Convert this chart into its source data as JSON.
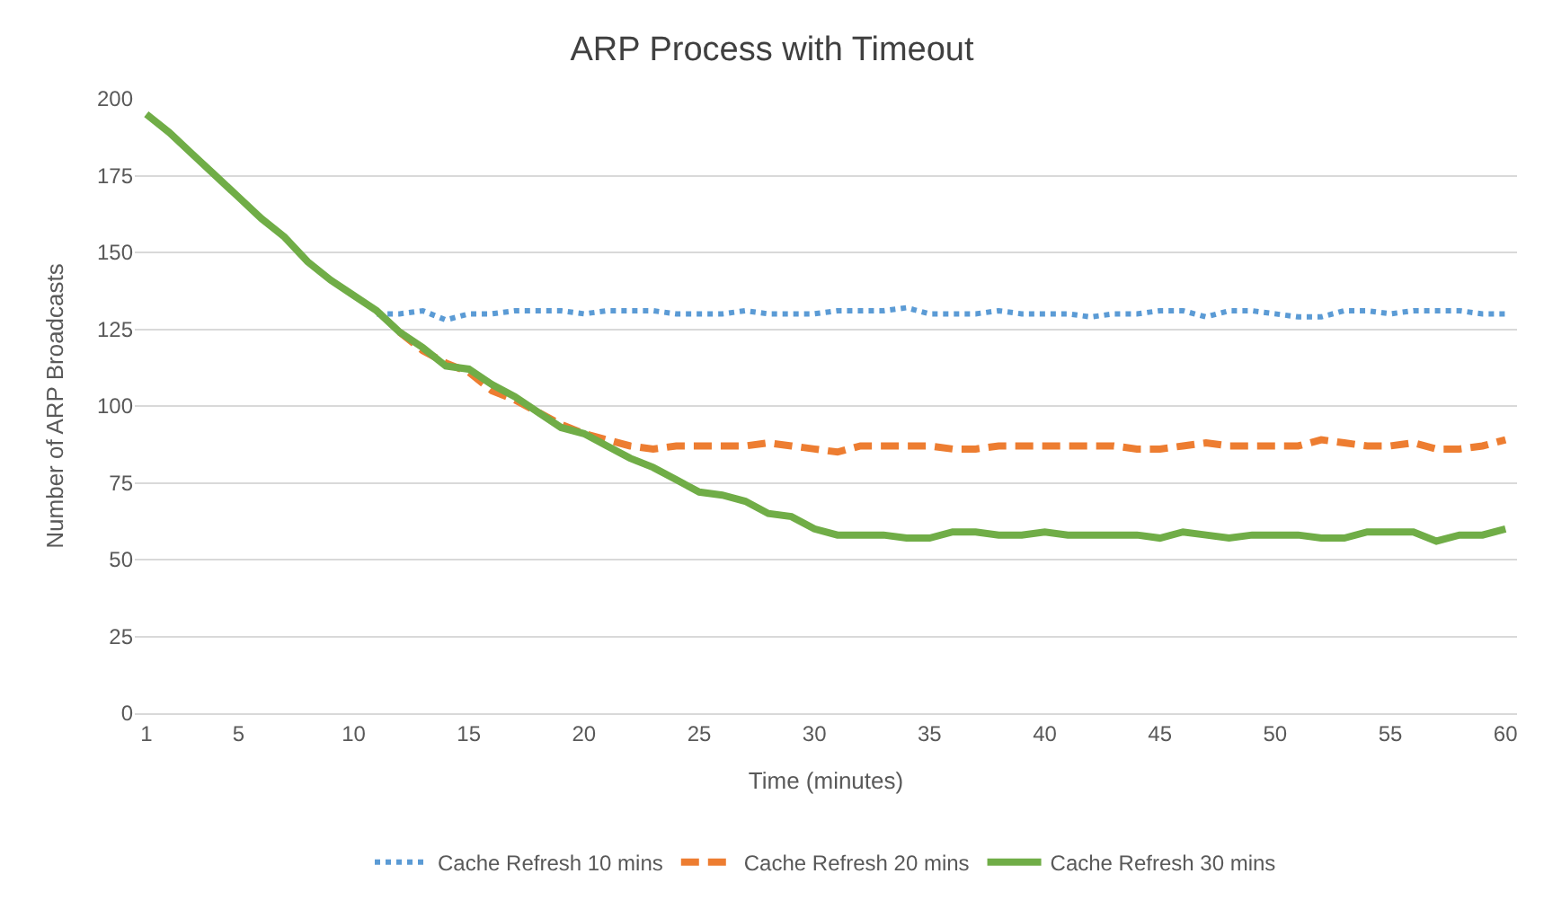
{
  "chart_data": {
    "type": "line",
    "title": "ARP Process with Timeout",
    "xlabel": "Time (minutes)",
    "ylabel": "Number of ARP Broadcasts",
    "x": [
      1,
      2,
      3,
      4,
      5,
      6,
      7,
      8,
      9,
      10,
      11,
      12,
      13,
      14,
      15,
      16,
      17,
      18,
      19,
      20,
      21,
      22,
      23,
      24,
      25,
      26,
      27,
      28,
      29,
      30,
      31,
      32,
      33,
      34,
      35,
      36,
      37,
      38,
      39,
      40,
      41,
      42,
      43,
      44,
      45,
      46,
      47,
      48,
      49,
      50,
      51,
      52,
      53,
      54,
      55,
      56,
      57,
      58,
      59,
      60
    ],
    "xlim": [
      0.5,
      60.5
    ],
    "xticks": [
      1,
      5,
      10,
      15,
      20,
      25,
      30,
      35,
      40,
      45,
      50,
      55,
      60
    ],
    "ylim": [
      0,
      200
    ],
    "yticks": [
      0,
      25,
      50,
      75,
      100,
      125,
      150,
      175,
      200
    ],
    "grid": "y",
    "legend": "bottom",
    "marker": "none",
    "series": [
      {
        "name": "Cache Refresh 10 mins",
        "color": "#5b9bd5",
        "line_style": "dotted",
        "values": [
          null,
          null,
          null,
          null,
          null,
          null,
          null,
          null,
          null,
          null,
          130,
          130,
          131,
          128,
          130,
          130,
          131,
          131,
          131,
          130,
          131,
          131,
          131,
          130,
          130,
          130,
          131,
          130,
          130,
          130,
          131,
          131,
          131,
          132,
          130,
          130,
          130,
          131,
          130,
          130,
          130,
          129,
          130,
          130,
          131,
          131,
          129,
          131,
          131,
          130,
          129,
          129,
          131,
          131,
          130,
          131,
          131,
          131,
          130,
          130
        ]
      },
      {
        "name": "Cache Refresh 20 mins",
        "color": "#ed7d31",
        "line_style": "dashed",
        "values": [
          null,
          null,
          null,
          null,
          null,
          null,
          null,
          null,
          null,
          null,
          null,
          124,
          118,
          114,
          111,
          105,
          102,
          98,
          94,
          91,
          89,
          87,
          86,
          87,
          87,
          87,
          87,
          88,
          87,
          86,
          85,
          87,
          87,
          87,
          87,
          86,
          86,
          87,
          87,
          87,
          87,
          87,
          87,
          86,
          86,
          87,
          88,
          87,
          87,
          87,
          87,
          89,
          88,
          87,
          87,
          88,
          86,
          86,
          87,
          89
        ]
      },
      {
        "name": "Cache Refresh 30 mins",
        "color": "#70ad47",
        "line_style": "solid",
        "values": [
          195,
          189,
          182,
          175,
          168,
          161,
          155,
          147,
          141,
          136,
          131,
          124,
          119,
          113,
          112,
          107,
          103,
          98,
          93,
          91,
          87,
          83,
          80,
          76,
          72,
          71,
          69,
          65,
          64,
          60,
          58,
          58,
          58,
          57,
          57,
          59,
          59,
          58,
          58,
          59,
          58,
          58,
          58,
          58,
          57,
          59,
          58,
          57,
          58,
          58,
          58,
          57,
          57,
          59,
          59,
          59,
          56,
          58,
          58,
          60
        ]
      }
    ]
  }
}
